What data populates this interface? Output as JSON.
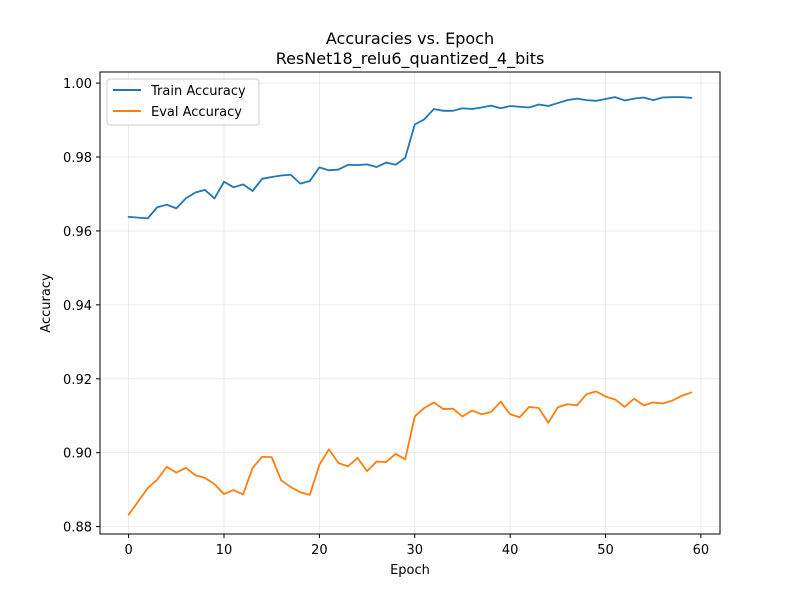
{
  "chart_data": {
    "type": "line",
    "title": "Accuracies vs. Epoch",
    "subtitle": "ResNet18_relu6_quantized_4_bits",
    "xlabel": "Epoch",
    "ylabel": "Accuracy",
    "xlim": [
      -3,
      62
    ],
    "ylim": [
      0.878,
      1.003
    ],
    "x_ticks": [
      0,
      10,
      20,
      30,
      40,
      50,
      60
    ],
    "y_ticks": [
      0.88,
      0.9,
      0.92,
      0.94,
      0.96,
      0.98,
      1.0
    ],
    "y_tick_labels": [
      "0.88",
      "0.90",
      "0.92",
      "0.94",
      "0.96",
      "0.98",
      "1.00"
    ],
    "grid": true,
    "legend_position": "top-left",
    "x": [
      0,
      1,
      2,
      3,
      4,
      5,
      6,
      7,
      8,
      9,
      10,
      11,
      12,
      13,
      14,
      15,
      16,
      17,
      18,
      19,
      20,
      21,
      22,
      23,
      24,
      25,
      26,
      27,
      28,
      29,
      30,
      31,
      32,
      33,
      34,
      35,
      36,
      37,
      38,
      39,
      40,
      41,
      42,
      43,
      44,
      45,
      46,
      47,
      48,
      49,
      50,
      51,
      52,
      53,
      54,
      55,
      56,
      57,
      58,
      59
    ],
    "series": [
      {
        "name": "Train Accuracy",
        "color": "#1f77b4",
        "values": [
          0.9638,
          0.9636,
          0.9634,
          0.9664,
          0.9671,
          0.9661,
          0.9688,
          0.9704,
          0.9711,
          0.9688,
          0.9733,
          0.9718,
          0.9726,
          0.9708,
          0.9741,
          0.9746,
          0.975,
          0.9752,
          0.9728,
          0.9735,
          0.9772,
          0.9764,
          0.9766,
          0.9779,
          0.9778,
          0.978,
          0.9773,
          0.9785,
          0.9779,
          0.9798,
          0.9888,
          0.9902,
          0.993,
          0.9925,
          0.9925,
          0.9932,
          0.993,
          0.9934,
          0.9939,
          0.9932,
          0.9938,
          0.9936,
          0.9934,
          0.9942,
          0.9938,
          0.9946,
          0.9954,
          0.9958,
          0.9954,
          0.9952,
          0.9957,
          0.9962,
          0.9953,
          0.9958,
          0.9961,
          0.9954,
          0.9961,
          0.9962,
          0.9962,
          0.996
        ]
      },
      {
        "name": "Eval Accuracy",
        "color": "#ff7f0e",
        "values": [
          0.8832,
          0.8868,
          0.8904,
          0.8927,
          0.8962,
          0.8946,
          0.8959,
          0.8939,
          0.8932,
          0.8915,
          0.8888,
          0.8899,
          0.8887,
          0.8959,
          0.8989,
          0.8988,
          0.8925,
          0.8907,
          0.8893,
          0.8886,
          0.8967,
          0.9009,
          0.8972,
          0.8963,
          0.8986,
          0.895,
          0.8976,
          0.8975,
          0.8997,
          0.8982,
          0.9098,
          0.9121,
          0.9136,
          0.9118,
          0.9119,
          0.9098,
          0.9114,
          0.9104,
          0.911,
          0.9138,
          0.9104,
          0.9096,
          0.9124,
          0.9121,
          0.9081,
          0.9123,
          0.9131,
          0.9128,
          0.9158,
          0.9166,
          0.9152,
          0.9144,
          0.9124,
          0.9146,
          0.9128,
          0.9136,
          0.9133,
          0.9141,
          0.9154,
          0.9163
        ]
      }
    ]
  }
}
